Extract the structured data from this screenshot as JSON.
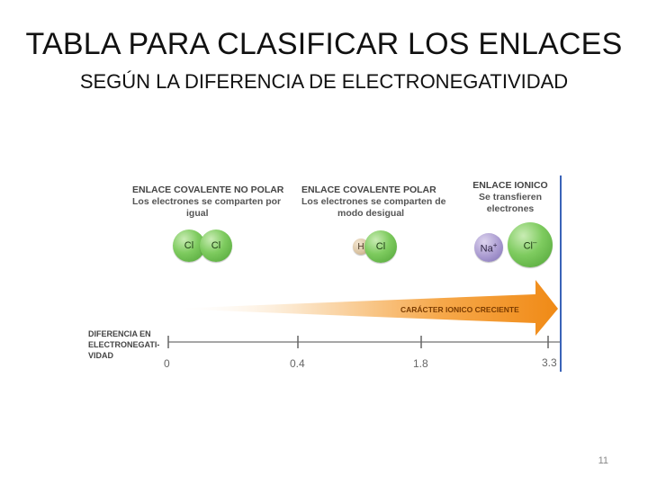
{
  "slide": {
    "title": "TABLA PARA CLASIFICAR LOS ENLACES",
    "subtitle": "SEGÚN LA DIFERENCIA DE ELECTRONEGATIVIDAD",
    "page_number": "11"
  },
  "figure": {
    "categories": [
      {
        "heading": "ENLACE COVALENTE NO POLAR",
        "description": [
          "Los electrones se comparten por",
          "igual"
        ]
      },
      {
        "heading": "ENLACE COVALENTE  POLAR",
        "description": [
          "Los electrones se comparten de",
          "modo desigual"
        ]
      },
      {
        "heading": "ENLACE IONICO",
        "description": [
          "Se transfieren",
          "electrones"
        ]
      }
    ],
    "atoms": {
      "nonpolar": [
        "Cl",
        "Cl"
      ],
      "polar": [
        "H",
        "Cl"
      ],
      "ionic": [
        {
          "symbol": "Na",
          "charge": "+"
        },
        {
          "symbol": "Cl",
          "charge": "–"
        }
      ]
    },
    "arrow_label": "CARÁCTER  IONICO CRECIENTE",
    "axis_title": [
      "DIFERENCIA EN",
      "ELECTRONEGATI-",
      "VIDAD"
    ],
    "ticks": [
      "0",
      "0.4",
      "1.8",
      "3.3"
    ],
    "colors": {
      "atom_green": "#6cbf4f",
      "atom_violet": "#a99ad0",
      "arrow_orange": "#f08a16",
      "divider_blue": "#3a63b8"
    }
  }
}
